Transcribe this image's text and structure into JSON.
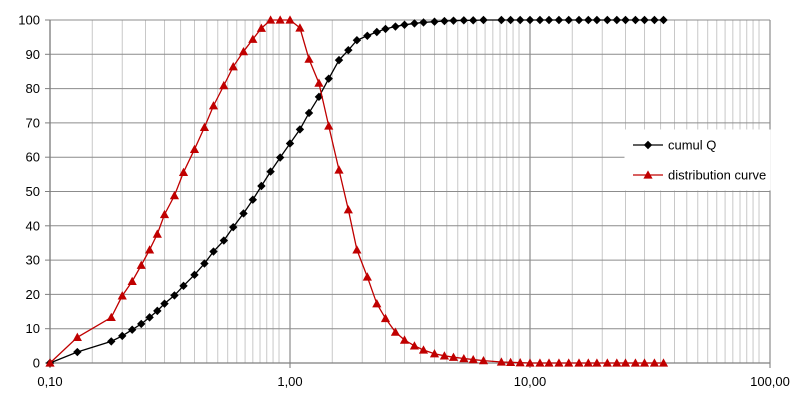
{
  "chart_data": {
    "type": "line",
    "x_scale": "log",
    "xlim": [
      0.1,
      100
    ],
    "ylim": [
      0,
      100
    ],
    "x_tick_labels": [
      "0,10",
      "1,00",
      "10,00",
      "100,00"
    ],
    "y_tick_labels": [
      "0",
      "10",
      "20",
      "30",
      "40",
      "50",
      "60",
      "70",
      "80",
      "90",
      "100"
    ],
    "grid": true,
    "legend_position": "right",
    "series": [
      {
        "name": "cumul Q",
        "color": "#000000",
        "marker": "diamond",
        "x": [
          0.1,
          0.13,
          0.18,
          0.2,
          0.22,
          0.24,
          0.26,
          0.28,
          0.3,
          0.33,
          0.36,
          0.4,
          0.44,
          0.48,
          0.53,
          0.58,
          0.64,
          0.7,
          0.76,
          0.83,
          0.91,
          1.0,
          1.1,
          1.2,
          1.32,
          1.45,
          1.6,
          1.75,
          1.9,
          2.1,
          2.3,
          2.5,
          2.75,
          3.0,
          3.3,
          3.6,
          4.0,
          4.4,
          4.8,
          5.3,
          5.8,
          6.4,
          7.6,
          8.3,
          9.1,
          10,
          11,
          12,
          13.2,
          14.5,
          16,
          17.5,
          19,
          21,
          23,
          25,
          27.5,
          30,
          33,
          36
        ],
        "y": [
          0,
          3.2,
          6.3,
          7.9,
          9.7,
          11.4,
          13.3,
          15.2,
          17.3,
          19.7,
          22.5,
          25.7,
          29,
          32.5,
          35.7,
          39.6,
          43.6,
          47.6,
          51.6,
          55.8,
          59.9,
          64,
          68.1,
          72.9,
          77.6,
          82.9,
          88.3,
          91.2,
          94.1,
          95.4,
          96.5,
          97.4,
          98.1,
          98.6,
          99,
          99.3,
          99.5,
          99.7,
          99.8,
          99.9,
          99.9,
          100,
          100,
          100,
          100,
          100,
          100,
          100,
          100,
          100,
          100,
          100,
          100,
          100,
          100,
          100,
          100,
          100,
          100,
          100
        ]
      },
      {
        "name": "distribution curve",
        "color": "#c00000",
        "marker": "triangle",
        "x": [
          0.1,
          0.13,
          0.18,
          0.2,
          0.22,
          0.24,
          0.26,
          0.28,
          0.3,
          0.33,
          0.36,
          0.4,
          0.44,
          0.48,
          0.53,
          0.58,
          0.64,
          0.7,
          0.76,
          0.83,
          0.91,
          1.0,
          1.1,
          1.2,
          1.32,
          1.45,
          1.6,
          1.75,
          1.9,
          2.1,
          2.3,
          2.5,
          2.75,
          3.0,
          3.3,
          3.6,
          4.0,
          4.4,
          4.8,
          5.3,
          5.8,
          6.4,
          7.6,
          8.3,
          9.1,
          10,
          11,
          12,
          13.2,
          14.5,
          16,
          17.5,
          19,
          21,
          23,
          25,
          27.5,
          30,
          33,
          36
        ],
        "y": [
          0,
          7.5,
          13.3,
          19.6,
          23.8,
          28.5,
          33,
          37.6,
          43.3,
          48.8,
          55.6,
          62.3,
          68.7,
          75,
          80.9,
          86.4,
          90.8,
          94.4,
          97.6,
          100,
          100,
          100,
          97.7,
          88.6,
          81.6,
          69.1,
          56.3,
          44.7,
          33,
          25.1,
          17.3,
          13,
          9,
          6.7,
          5,
          3.8,
          2.7,
          2.1,
          1.7,
          1.3,
          1,
          0.7,
          0.3,
          0.2,
          0.1,
          0,
          0,
          0,
          0,
          0,
          0,
          0,
          0,
          0,
          0,
          0,
          0,
          0,
          0,
          0
        ]
      }
    ]
  }
}
